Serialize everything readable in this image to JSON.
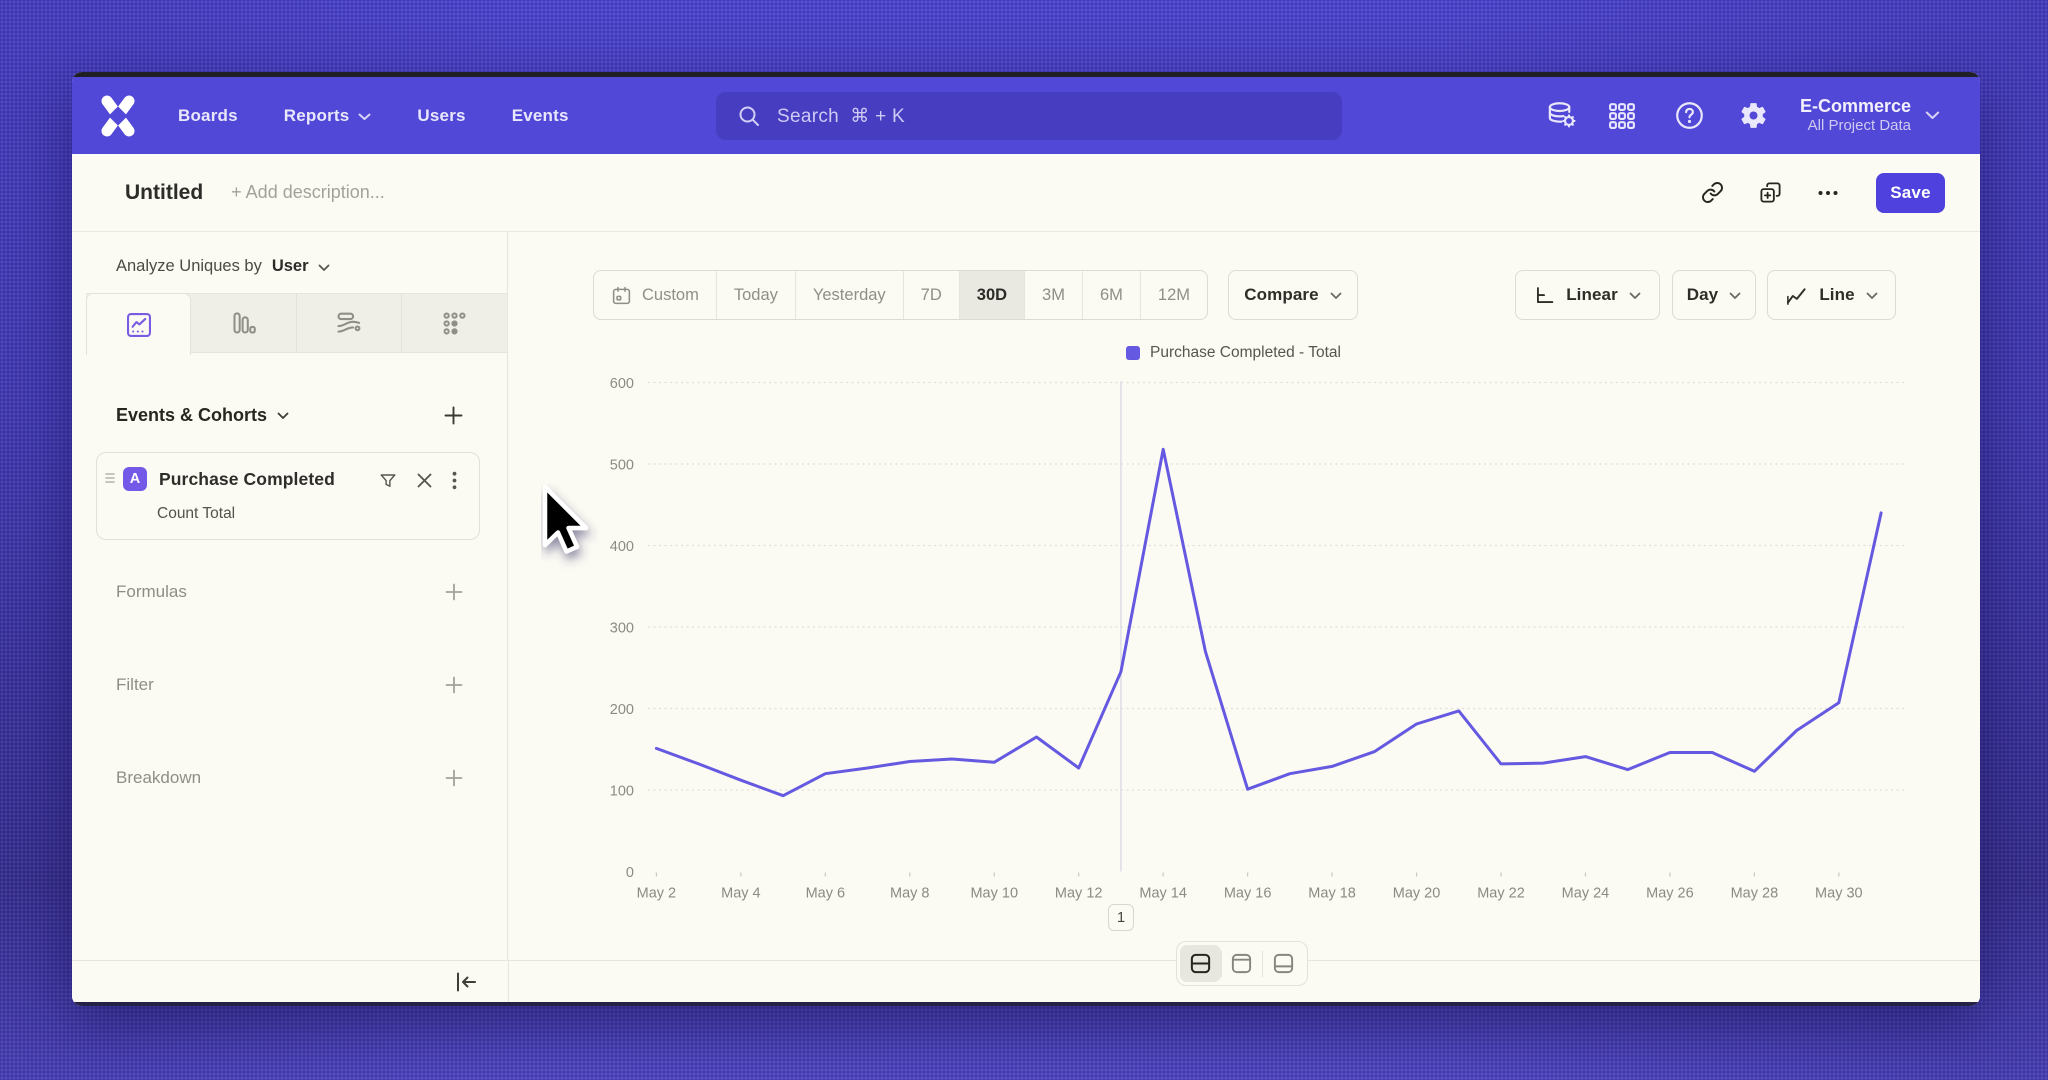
{
  "colors": {
    "brand_navbar": "#5349d9",
    "accent_line": "#6459e0",
    "badge": "#7459e8",
    "save_button": "#4e41dd",
    "content_bg": "#fbfaf3",
    "outer_bg_top": "#4f47cf",
    "outer_bg_bottom": "#5148c3"
  },
  "nav": {
    "logo": "mixpanel-x-logo",
    "items": [
      {
        "label": "Boards",
        "has_chevron": false
      },
      {
        "label": "Reports",
        "has_chevron": true
      },
      {
        "label": "Users",
        "has_chevron": false
      },
      {
        "label": "Events",
        "has_chevron": false
      }
    ],
    "search": {
      "label": "Search",
      "shortcut": "⌘ + K"
    },
    "right_icons": [
      "data-settings-icon",
      "apps-grid-icon",
      "help-icon",
      "settings-gear-icon"
    ],
    "project": {
      "name": "E-Commerce",
      "scope": "All Project Data"
    }
  },
  "header": {
    "title": "Untitled",
    "description_placeholder": "+ Add description...",
    "actions": [
      "link-icon",
      "duplicate-icon",
      "more-icon"
    ],
    "save_label": "Save"
  },
  "sidebar": {
    "analyze_prefix": "Analyze Uniques by",
    "analyze_value": "User",
    "tabs": [
      "insights-tab",
      "bars-tab",
      "flows-tab",
      "dots-tab"
    ],
    "active_tab": "insights-tab",
    "events_title": "Events & Cohorts",
    "event_card": {
      "badge": "A",
      "title": "Purchase Completed",
      "subtitle": "Count Total"
    },
    "sections": [
      {
        "label": "Formulas"
      },
      {
        "label": "Filter"
      },
      {
        "label": "Breakdown"
      }
    ],
    "collapse_icon": "collapse-left-icon"
  },
  "toolbar": {
    "ranges": [
      {
        "label": "Custom",
        "icon": "calendar"
      },
      {
        "label": "Today"
      },
      {
        "label": "Yesterday"
      },
      {
        "label": "7D"
      },
      {
        "label": "30D"
      },
      {
        "label": "3M"
      },
      {
        "label": "6M"
      },
      {
        "label": "12M"
      }
    ],
    "selected_range": "30D",
    "compare_label": "Compare",
    "smoothing_label": "Linear",
    "interval_label": "Day",
    "chart_type_label": "Line"
  },
  "chart_data": {
    "type": "line",
    "legend": "Purchase Completed - Total",
    "series_name": "Purchase Completed",
    "x": [
      "May 2",
      "May 3",
      "May 4",
      "May 5",
      "May 6",
      "May 7",
      "May 8",
      "May 9",
      "May 10",
      "May 11",
      "May 12",
      "May 13",
      "May 14",
      "May 15",
      "May 16",
      "May 17",
      "May 18",
      "May 19",
      "May 20",
      "May 21",
      "May 22",
      "May 23",
      "May 24",
      "May 25",
      "May 26",
      "May 27",
      "May 28",
      "May 29",
      "May 30",
      "May 31"
    ],
    "values": [
      151,
      132,
      112,
      93,
      120,
      127,
      135,
      138,
      134,
      165,
      127,
      245,
      518,
      270,
      101,
      120,
      129,
      147,
      181,
      197,
      132,
      133,
      141,
      125,
      146,
      146,
      123,
      173,
      207,
      440
    ],
    "x_tick_step": 2,
    "ylim": [
      0,
      600
    ],
    "yticks": [
      0,
      100,
      200,
      300,
      400,
      500,
      600
    ],
    "line_color": "#6459e0",
    "grid": "horizontal-dashed",
    "legend_position": "top-center",
    "annotation": {
      "label": "1",
      "x_index": 11
    }
  },
  "footer": {
    "view_toggles": [
      "split-view",
      "chart-view",
      "table-view"
    ],
    "selected_toggle": "split-view"
  }
}
